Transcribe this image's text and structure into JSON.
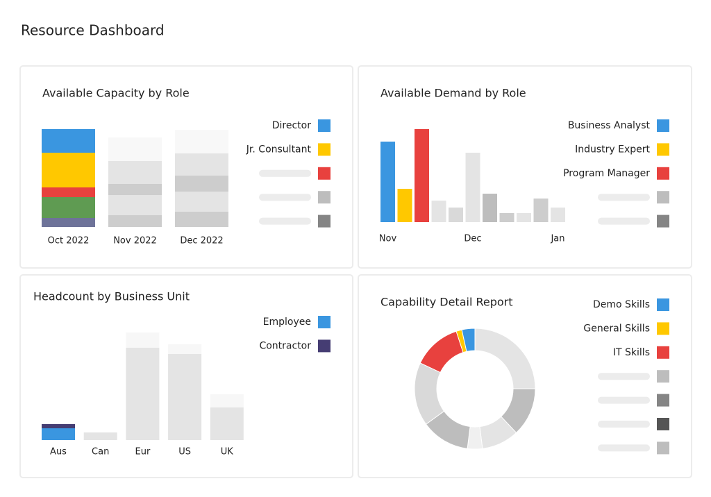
{
  "title": "Resource Dashboard",
  "chart_data": [
    {
      "type": "stacked-bar",
      "title": "Available Capacity by Role",
      "categories": [
        "Oct 2022",
        "Nov 2022",
        "Dec 2022"
      ],
      "series": [
        {
          "values": [
            13,
            17,
            22
          ],
          "colors": [
            "#6e7399",
            "#cdcdcd",
            "#cdcdcd"
          ]
        },
        {
          "values": [
            30,
            29,
            29
          ],
          "colors": [
            "#5f9b52",
            "#e4e4e4",
            "#e4e4e4"
          ]
        },
        {
          "values": [
            14,
            16,
            23
          ],
          "colors": [
            "#e8413e",
            "#cdcdcd",
            "#cdcdcd"
          ]
        },
        {
          "values": [
            50,
            33,
            32
          ],
          "colors": [
            "#ffc800",
            "#e4e4e4",
            "#e4e4e4"
          ]
        },
        {
          "values": [
            34,
            34,
            34
          ],
          "colors": [
            "#3a96e0",
            "#f8f8f8",
            "#f8f8f8"
          ]
        }
      ],
      "legend": [
        {
          "label": "Director",
          "color": "#3a96e0"
        },
        {
          "label": "Jr. Consultant",
          "color": "#ffc800"
        },
        {
          "label": null,
          "color": "#e8413e"
        },
        {
          "label": null,
          "color": "#bdbdbd"
        },
        {
          "label": null,
          "color": "#858585"
        }
      ]
    },
    {
      "type": "bar",
      "title": "Available Demand by Role",
      "categories": [
        "Nov",
        null,
        null,
        null,
        null,
        "Dec",
        null,
        null,
        null,
        null,
        "Jan"
      ],
      "values": [
        116,
        48,
        134,
        31,
        21,
        100,
        41,
        13,
        13,
        34,
        21
      ],
      "colors": [
        "#3a96e0",
        "#ffc800",
        "#e8413e",
        "#e4e4e4",
        "#d9d9d9",
        "#e4e4e4",
        "#bdbdbd",
        "#cdcdcd",
        "#e4e4e4",
        "#cdcdcd",
        "#e4e4e4"
      ],
      "legend": [
        {
          "label": "Business Analyst",
          "color": "#3a96e0"
        },
        {
          "label": "Industry Expert",
          "color": "#ffc800"
        },
        {
          "label": "Program Manager",
          "color": "#e8413e"
        },
        {
          "label": null,
          "color": "#bdbdbd"
        },
        {
          "label": null,
          "color": "#858585"
        }
      ]
    },
    {
      "type": "stacked-bar",
      "title": "Headcount by Business Unit",
      "categories": [
        "Aus",
        "Can",
        "Eur",
        "US",
        "UK"
      ],
      "series": [
        {
          "values": [
            17,
            11,
            133,
            124,
            47
          ],
          "colors": [
            "#3a96e0",
            "#e4e4e4",
            "#e4e4e4",
            "#e4e4e4",
            "#e4e4e4"
          ]
        },
        {
          "values": [
            6,
            null,
            22,
            14,
            19
          ],
          "colors": [
            "#453d73",
            null,
            "#f7f7f7",
            "#f7f7f7",
            "#f7f7f7"
          ]
        }
      ],
      "legend": [
        {
          "label": "Employee",
          "color": "#3a96e0"
        },
        {
          "label": "Contractor",
          "color": "#453d73"
        }
      ]
    },
    {
      "type": "donut",
      "title": "Capability Detail Report",
      "values": [
        25,
        13,
        10,
        4,
        13,
        17,
        13,
        1.5,
        3.5
      ],
      "colors": [
        "#e4e4e4",
        "#bdbdbd",
        "#e4e4e4",
        "#f0f0f0",
        "#bdbdbd",
        "#d9d9d9",
        "#e8413e",
        "#ffc800",
        "#3a96e0"
      ],
      "legend": [
        {
          "label": "Demo Skills",
          "color": "#3a96e0"
        },
        {
          "label": "General Skills",
          "color": "#ffc800"
        },
        {
          "label": "IT Skills",
          "color": "#e8413e"
        },
        {
          "label": null,
          "color": "#bdbdbd"
        },
        {
          "label": null,
          "color": "#858585"
        },
        {
          "label": null,
          "color": "#555555"
        },
        {
          "label": null,
          "color": "#bdbdbd"
        }
      ]
    }
  ]
}
